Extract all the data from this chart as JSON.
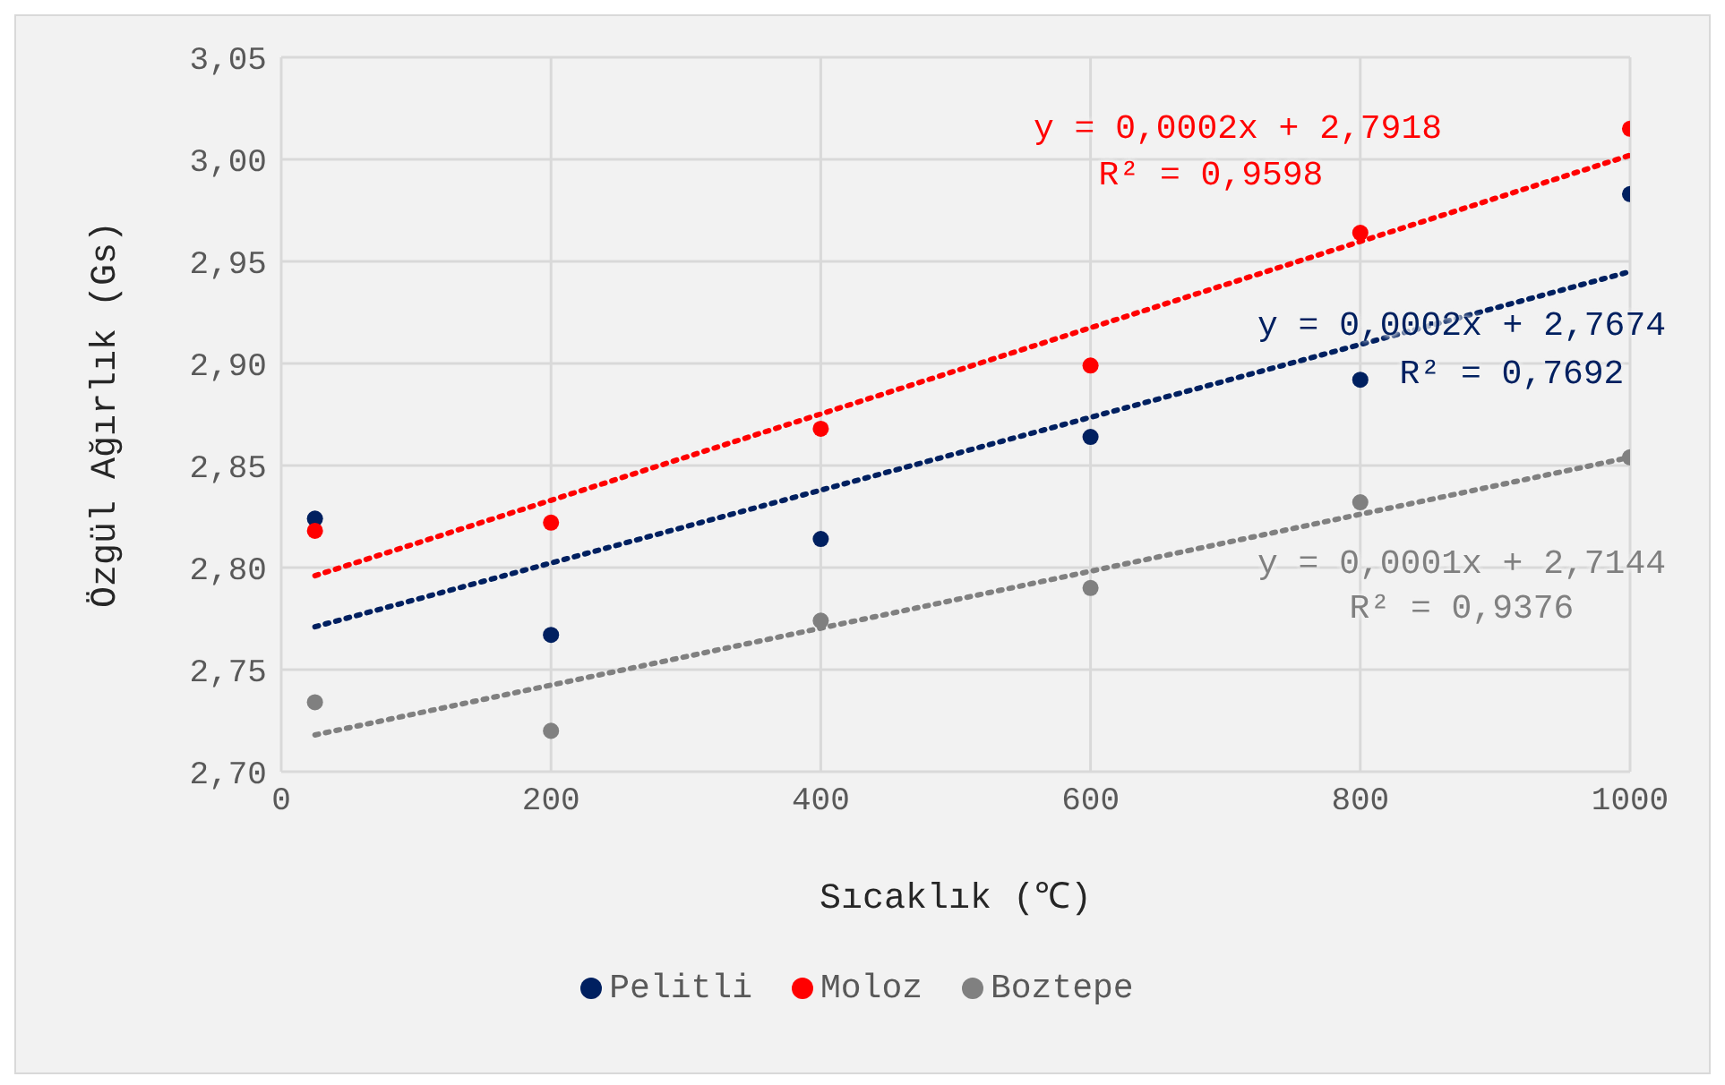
{
  "chart_data": {
    "type": "scatter",
    "xlabel": "Sıcaklık (℃)",
    "ylabel": "Özgül Ağırlık (Gs)",
    "xlim": [
      0,
      1000
    ],
    "xticks": [
      0,
      200,
      400,
      600,
      800,
      1000
    ],
    "ylim": [
      2.7,
      3.05
    ],
    "yticks": [
      {
        "value": 2.7,
        "label": "2,70"
      },
      {
        "value": 2.75,
        "label": "2,75"
      },
      {
        "value": 2.8,
        "label": "2,80"
      },
      {
        "value": 2.85,
        "label": "2,85"
      },
      {
        "value": 2.9,
        "label": "2,90"
      },
      {
        "value": 2.95,
        "label": "2,95"
      },
      {
        "value": 3.0,
        "label": "3,00"
      },
      {
        "value": 3.05,
        "label": "3,05"
      }
    ],
    "grid": true,
    "legend": "bottom",
    "marker": "circle",
    "x": [
      25,
      200,
      400,
      600,
      800,
      1000
    ],
    "series": [
      {
        "name": "Pelitli",
        "color": "#002060",
        "values": [
          2.824,
          2.767,
          2.814,
          2.864,
          2.892,
          2.983
        ]
      },
      {
        "name": "Moloz",
        "color": "#ff0000",
        "values": [
          2.818,
          2.822,
          2.868,
          2.899,
          2.964,
          3.015
        ]
      },
      {
        "name": "Boztepe",
        "color": "#808080",
        "values": [
          2.734,
          2.72,
          2.774,
          2.79,
          2.832,
          2.854
        ]
      },
      {
        "type": "line",
        "color": "#002060",
        "values": [
          2.771,
          null,
          null,
          null,
          null,
          2.945
        ],
        "line_style": "dotted",
        "marker": "none"
      },
      {
        "type": "line",
        "color": "#ff0000",
        "values": [
          2.796,
          null,
          null,
          null,
          null,
          3.002
        ],
        "line_style": "dotted",
        "marker": "none"
      },
      {
        "type": "line",
        "color": "#808080",
        "values": [
          2.718,
          null,
          null,
          null,
          null,
          2.854
        ],
        "line_style": "dotted",
        "marker": "none"
      }
    ],
    "annotations": [
      "y = 0,0002x + 2,7674",
      "R² = 0,7692",
      "y = 0,0002x + 2,7918",
      "R² = 0,9598",
      "y = 0,0001x + 2,7144",
      "R² = 0,9376"
    ]
  }
}
